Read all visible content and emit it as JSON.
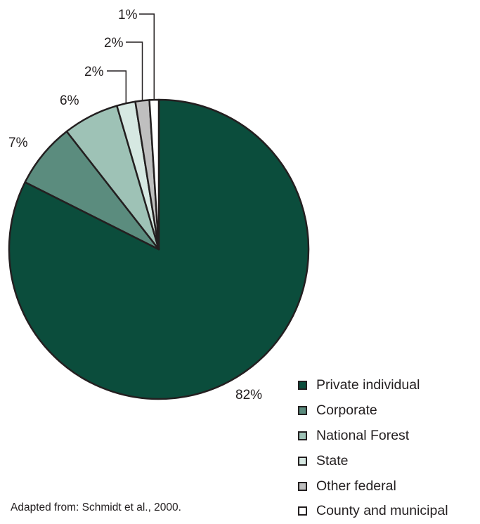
{
  "chart_data": {
    "type": "pie",
    "slices": [
      {
        "label": "Private individual",
        "value": 82,
        "display": "82%",
        "color": "#0b4d3c"
      },
      {
        "label": "Corporate",
        "value": 7,
        "display": "7%",
        "color": "#5b8c7e"
      },
      {
        "label": "National Forest",
        "value": 6,
        "display": "6%",
        "color": "#9ec2b6"
      },
      {
        "label": "State",
        "value": 2,
        "display": "2%",
        "color": "#d6e8e2"
      },
      {
        "label": "Other federal",
        "value": 1.5,
        "display": "2%",
        "color": "#bfbfbf"
      },
      {
        "label": "County and municipal",
        "value": 1,
        "display": "1%",
        "color": "#ffffff"
      }
    ],
    "start_angle": "12 o'clock",
    "direction": "clockwise",
    "legend_position": "bottom-right"
  },
  "source_note": "Adapted from: Schmidt et al., 2000."
}
